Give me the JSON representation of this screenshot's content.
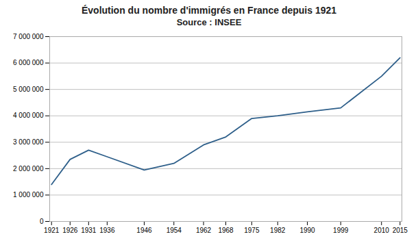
{
  "chart_data": {
    "type": "line",
    "title": "Évolution du nombre d'immigrés en France depuis 1921",
    "subtitle": "Source : INSEE",
    "x": [
      1921,
      1926,
      1931,
      1936,
      1946,
      1954,
      1962,
      1968,
      1975,
      1982,
      1990,
      1999,
      2010,
      2015
    ],
    "values": [
      1400000,
      2350000,
      2700000,
      2450000,
      1950000,
      2200000,
      2900000,
      3200000,
      3900000,
      4000000,
      4150000,
      4300000,
      5500000,
      6200000
    ],
    "color": "#2E5F8A",
    "xlim": [
      1920.5,
      2015.5
    ],
    "xticks": [
      1921,
      1926,
      1931,
      1936,
      1946,
      1954,
      1962,
      1968,
      1975,
      1982,
      1990,
      1999,
      2010,
      2015
    ],
    "ylim": [
      0,
      7000000
    ],
    "yticks": [
      0,
      {
        "value": 1000000,
        "label": "1 000 000"
      },
      {
        "value": 2000000,
        "label": "2 000 000"
      },
      {
        "value": 3000000,
        "label": "3 000 000"
      },
      {
        "value": 4000000,
        "label": "4 000 000"
      },
      {
        "value": 5000000,
        "label": "5 000 000"
      },
      {
        "value": 6000000,
        "label": "6 000 000"
      },
      {
        "value": 7000000,
        "label": "7 000 000"
      }
    ],
    "grid": true
  }
}
